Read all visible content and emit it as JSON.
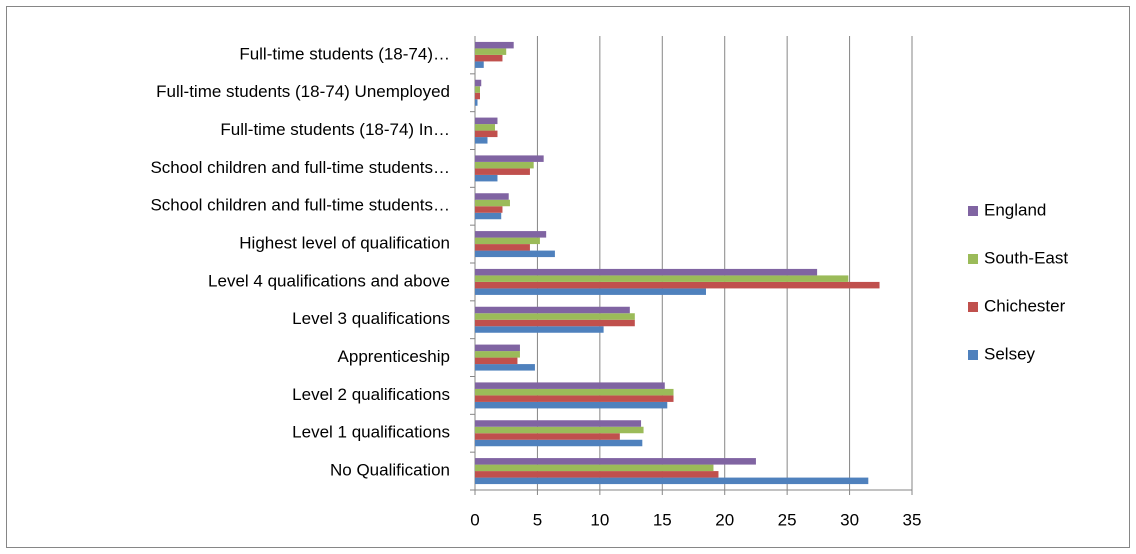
{
  "chart_data": {
    "type": "bar",
    "orientation": "horizontal",
    "categories": [
      "No Qualification",
      "Level 1 qualifications",
      "Level 2 qualifications",
      "Apprenticeship",
      "Level 3 qualifications",
      "Level 4 qualifications and above",
      "Highest level of qualification",
      "School children and full-time students…",
      "School children and full-time students…",
      "Full-time students (18-74) In…",
      "Full-time students (18-74) Unemployed",
      "Full-time students (18-74)…"
    ],
    "series": [
      {
        "name": "Selsey",
        "color": "#4f81bd",
        "values": [
          31.5,
          13.4,
          15.4,
          4.8,
          10.3,
          18.5,
          6.4,
          2.1,
          1.8,
          1.0,
          0.2,
          0.7
        ]
      },
      {
        "name": "Chichester",
        "color": "#c0504d",
        "values": [
          19.5,
          11.6,
          15.9,
          3.4,
          12.8,
          32.4,
          4.4,
          2.2,
          4.4,
          1.8,
          0.4,
          2.2
        ]
      },
      {
        "name": "South-East",
        "color": "#9bbb59",
        "values": [
          19.1,
          13.5,
          15.9,
          3.6,
          12.8,
          29.9,
          5.2,
          2.8,
          4.7,
          1.6,
          0.4,
          2.5
        ]
      },
      {
        "name": "England",
        "color": "#8064a2",
        "values": [
          22.5,
          13.3,
          15.2,
          3.6,
          12.4,
          27.4,
          5.7,
          2.7,
          5.5,
          1.8,
          0.5,
          3.1
        ]
      }
    ],
    "xlim": [
      0,
      35
    ],
    "xticks": [
      0,
      5,
      10,
      15,
      20,
      25,
      30,
      35
    ],
    "grid": true,
    "legend": "right"
  }
}
